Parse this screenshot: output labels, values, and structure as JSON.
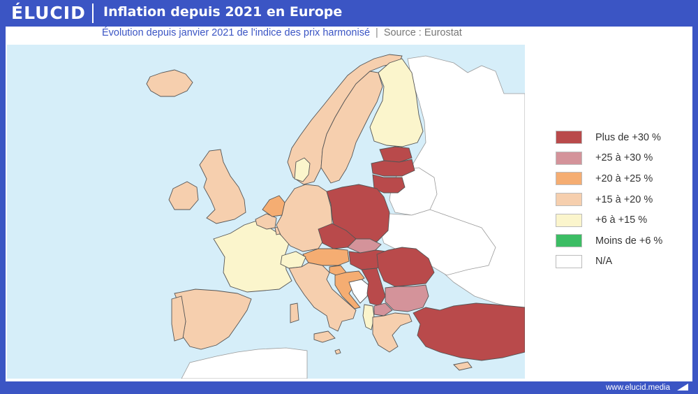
{
  "brand": {
    "logo": "ÉLUCID",
    "url": "www.elucid.media"
  },
  "header": {
    "title": "Inflation depuis 2021 en Europe"
  },
  "subtitle": {
    "text": "Évolution depuis janvier 2021 de l'indice des prix harmonisé",
    "separator": "|",
    "source": "Source : Eurostat"
  },
  "colors": {
    "sea": "#d6eef9",
    "non_eu_land": "#ffffff",
    "border": "#555555"
  },
  "legend": [
    {
      "label": "Plus de +30 %",
      "color": "#b94a4b"
    },
    {
      "label": "+25 à +30 %",
      "color": "#d4939a"
    },
    {
      "label": "+20 à +25 %",
      "color": "#f5ad72"
    },
    {
      "label": "+15 à +20 %",
      "color": "#f6cfae"
    },
    {
      "label": "+6 à +15 %",
      "color": "#fbf5cc"
    },
    {
      "label": "Moins de +6 %",
      "color": "#3cbd64"
    },
    {
      "label": "N/A",
      "color": "#ffffff"
    }
  ],
  "countries": [
    {
      "name": "Islande",
      "category": "+15 à +20 %"
    },
    {
      "name": "Norvège",
      "category": "+15 à +20 %"
    },
    {
      "name": "Suède",
      "category": "+15 à +20 %"
    },
    {
      "name": "Finlande",
      "category": "+6 à +15 %"
    },
    {
      "name": "Estonie",
      "category": "Plus de +30 %"
    },
    {
      "name": "Lettonie",
      "category": "Plus de +30 %"
    },
    {
      "name": "Lituanie",
      "category": "Plus de +30 %"
    },
    {
      "name": "Danemark",
      "category": "+6 à +15 %"
    },
    {
      "name": "Irlande",
      "category": "+15 à +20 %"
    },
    {
      "name": "Royaume-Uni",
      "category": "+15 à +20 %"
    },
    {
      "name": "Pays-Bas",
      "category": "+20 à +25 %"
    },
    {
      "name": "Belgique",
      "category": "+15 à +20 %"
    },
    {
      "name": "Luxembourg",
      "category": "+15 à +20 %"
    },
    {
      "name": "Allemagne",
      "category": "+15 à +20 %"
    },
    {
      "name": "Pologne",
      "category": "Plus de +30 %"
    },
    {
      "name": "Tchéquie",
      "category": "Plus de +30 %"
    },
    {
      "name": "Slovaquie",
      "category": "+25 à +30 %"
    },
    {
      "name": "Autriche",
      "category": "+20 à +25 %"
    },
    {
      "name": "Hongrie",
      "category": "Plus de +30 %"
    },
    {
      "name": "Slovénie",
      "category": "+20 à +25 %"
    },
    {
      "name": "Croatie",
      "category": "+20 à +25 %"
    },
    {
      "name": "Roumanie",
      "category": "Plus de +30 %"
    },
    {
      "name": "Bulgarie",
      "category": "+25 à +30 %"
    },
    {
      "name": "Serbie",
      "category": "Plus de +30 %"
    },
    {
      "name": "Macédoine du Nord",
      "category": "+25 à +30 %"
    },
    {
      "name": "Albanie",
      "category": "+6 à +15 %"
    },
    {
      "name": "Grèce",
      "category": "+15 à +20 %"
    },
    {
      "name": "Turquie",
      "category": "Plus de +30 %"
    },
    {
      "name": "France",
      "category": "+6 à +15 %"
    },
    {
      "name": "Suisse",
      "category": "+6 à +15 %"
    },
    {
      "name": "Italie",
      "category": "+15 à +20 %"
    },
    {
      "name": "Espagne",
      "category": "+15 à +20 %"
    },
    {
      "name": "Portugal",
      "category": "+15 à +20 %"
    },
    {
      "name": "Malte",
      "category": "+15 à +20 %"
    },
    {
      "name": "Chypre",
      "category": "+15 à +20 %"
    },
    {
      "name": "Biélorussie",
      "category": "N/A"
    },
    {
      "name": "Ukraine",
      "category": "N/A"
    },
    {
      "name": "Moldavie",
      "category": "N/A"
    },
    {
      "name": "Russie",
      "category": "N/A"
    },
    {
      "name": "Bosnie-Herzégovine",
      "category": "N/A"
    }
  ]
}
